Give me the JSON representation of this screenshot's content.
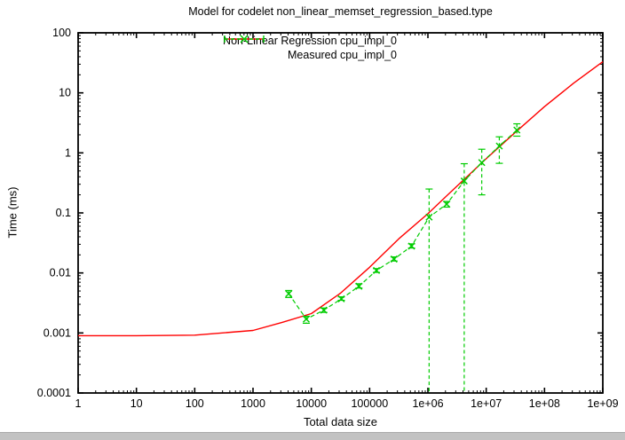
{
  "page": {
    "background": "#ffffff",
    "bottom_bar_color": "#c2c2c2"
  },
  "chart_data": {
    "type": "line",
    "title": "Model for codelet non_linear_memset_regression_based.type",
    "xlabel": "Total data size",
    "ylabel": "Time (ms)",
    "x_scale": "log",
    "y_scale": "log",
    "xlim": [
      1,
      1000000000
    ],
    "ylim": [
      0.0001,
      100
    ],
    "x_ticks": [
      "1",
      "10",
      "100",
      "1000",
      "10000",
      "100000",
      "1e+06",
      "1e+07",
      "1e+08",
      "1e+09"
    ],
    "y_ticks": [
      "0.0001",
      "0.001",
      "0.01",
      "0.1",
      "1",
      "10",
      "100"
    ],
    "grid": false,
    "legend_position": "top-center-inside",
    "colors": {
      "model": "#ff0000",
      "measured": "#00cc00",
      "axis": "#000000"
    },
    "series": [
      {
        "name": "Non-Linear Regression cpu_impl_0",
        "type": "line",
        "style": "solid",
        "color": "#ff0000",
        "x": [
          1,
          10,
          100,
          1000,
          3162,
          10000,
          31623,
          100000,
          316228,
          1000000,
          3162278,
          10000000,
          31622777,
          100000000,
          316227766,
          1000000000
        ],
        "y": [
          0.0009,
          0.0009,
          0.00092,
          0.0011,
          0.0015,
          0.0021,
          0.0046,
          0.0124,
          0.037,
          0.097,
          0.28,
          0.8,
          2.2,
          5.9,
          14.5,
          33
        ]
      },
      {
        "name": "Measured cpu_impl_0",
        "type": "errorbar-line",
        "style": "dashed",
        "marker": "x",
        "color": "#00cc00",
        "x": [
          4096,
          8192,
          16384,
          32768,
          65536,
          131072,
          262144,
          524288,
          1048576,
          2097152,
          4194304,
          8388608,
          16777216,
          33554432
        ],
        "y": [
          0.0045,
          0.0017,
          0.0024,
          0.0037,
          0.006,
          0.011,
          0.017,
          0.028,
          0.085,
          0.14,
          0.34,
          0.69,
          1.3,
          2.4
        ],
        "y_low": [
          0.0039,
          0.00145,
          0.0022,
          0.0035,
          0.0056,
          0.0102,
          0.0158,
          0.026,
          0.0001,
          0.125,
          0.0001,
          0.2,
          0.67,
          1.9
        ],
        "y_high": [
          0.0051,
          0.0019,
          0.0026,
          0.004,
          0.0066,
          0.0118,
          0.0185,
          0.0305,
          0.25,
          0.155,
          0.66,
          1.15,
          1.85,
          3.05
        ]
      }
    ]
  }
}
